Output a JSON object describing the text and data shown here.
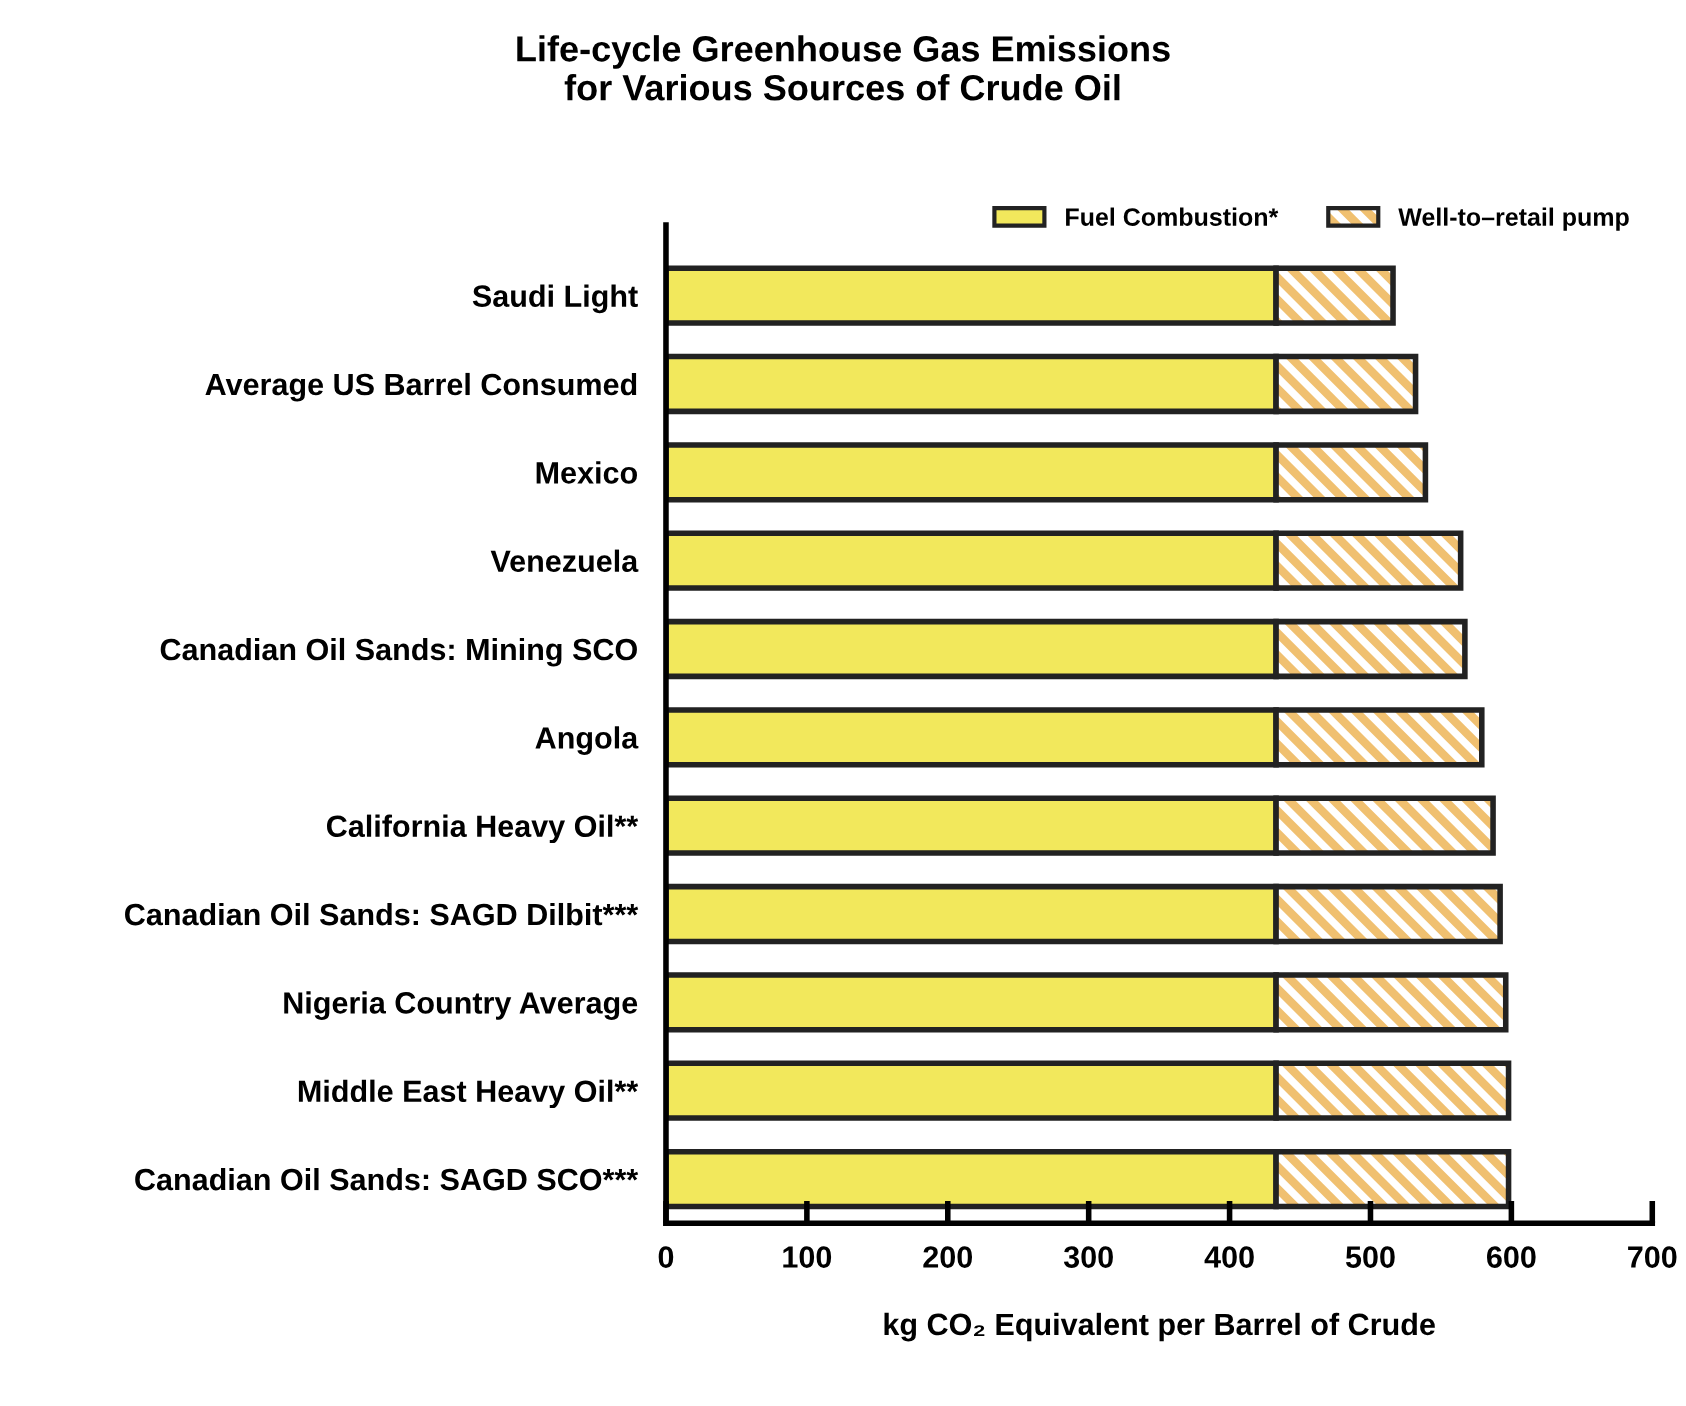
{
  "chart_data": {
    "type": "bar",
    "orientation": "horizontal",
    "stacked": true,
    "title": "Life-cycle Greenhouse Gas Emissions\nfor Various Sources of Crude Oil",
    "xlabel": "kg CO₂ Equivalent per Barrel of Crude",
    "categories": [
      "Saudi Light",
      "Average US Barrel Consumed",
      "Mexico",
      "Venezuela",
      "Canadian Oil Sands: Mining SCO",
      "Angola",
      "California Heavy Oil**",
      "Canadian Oil Sands: SAGD Dilbit***",
      "Nigeria Country Average",
      "Middle East Heavy Oil**",
      "Canadian Oil Sands: SAGD SCO***"
    ],
    "series": [
      {
        "name": "Fuel Combustion*",
        "color": "#f2e85c",
        "values": [
          433,
          433,
          433,
          433,
          433,
          433,
          433,
          433,
          433,
          433,
          433
        ]
      },
      {
        "name": "Well-to–retail pump",
        "color": "#f0c070",
        "values": [
          83,
          99,
          106,
          131,
          134,
          146,
          154,
          159,
          163,
          165,
          165
        ]
      }
    ],
    "xlim": [
      0,
      700
    ],
    "xticks": [
      0,
      100,
      200,
      300,
      400,
      500,
      600,
      700
    ],
    "legend": "top right",
    "grid": false
  }
}
